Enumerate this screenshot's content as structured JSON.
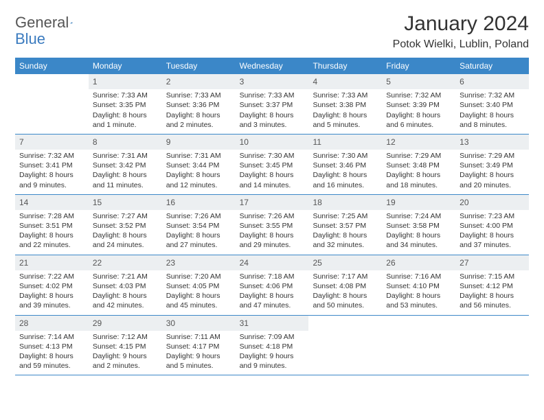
{
  "brand": {
    "part1": "General",
    "part2": "Blue"
  },
  "title": "January 2024",
  "location": "Potok Wielki, Lublin, Poland",
  "colors": {
    "header_bg": "#3b87c8",
    "header_text": "#ffffff",
    "daynum_bg": "#eceff1",
    "rule": "#3b87c8",
    "brand_gray": "#6b6b6b",
    "brand_blue": "#3b7bbf"
  },
  "days_of_week": [
    "Sunday",
    "Monday",
    "Tuesday",
    "Wednesday",
    "Thursday",
    "Friday",
    "Saturday"
  ],
  "weeks": [
    [
      null,
      {
        "n": "1",
        "sr": "7:33 AM",
        "ss": "3:35 PM",
        "dl": "8 hours and 1 minute."
      },
      {
        "n": "2",
        "sr": "7:33 AM",
        "ss": "3:36 PM",
        "dl": "8 hours and 2 minutes."
      },
      {
        "n": "3",
        "sr": "7:33 AM",
        "ss": "3:37 PM",
        "dl": "8 hours and 3 minutes."
      },
      {
        "n": "4",
        "sr": "7:33 AM",
        "ss": "3:38 PM",
        "dl": "8 hours and 5 minutes."
      },
      {
        "n": "5",
        "sr": "7:32 AM",
        "ss": "3:39 PM",
        "dl": "8 hours and 6 minutes."
      },
      {
        "n": "6",
        "sr": "7:32 AM",
        "ss": "3:40 PM",
        "dl": "8 hours and 8 minutes."
      }
    ],
    [
      {
        "n": "7",
        "sr": "7:32 AM",
        "ss": "3:41 PM",
        "dl": "8 hours and 9 minutes."
      },
      {
        "n": "8",
        "sr": "7:31 AM",
        "ss": "3:42 PM",
        "dl": "8 hours and 11 minutes."
      },
      {
        "n": "9",
        "sr": "7:31 AM",
        "ss": "3:44 PM",
        "dl": "8 hours and 12 minutes."
      },
      {
        "n": "10",
        "sr": "7:30 AM",
        "ss": "3:45 PM",
        "dl": "8 hours and 14 minutes."
      },
      {
        "n": "11",
        "sr": "7:30 AM",
        "ss": "3:46 PM",
        "dl": "8 hours and 16 minutes."
      },
      {
        "n": "12",
        "sr": "7:29 AM",
        "ss": "3:48 PM",
        "dl": "8 hours and 18 minutes."
      },
      {
        "n": "13",
        "sr": "7:29 AM",
        "ss": "3:49 PM",
        "dl": "8 hours and 20 minutes."
      }
    ],
    [
      {
        "n": "14",
        "sr": "7:28 AM",
        "ss": "3:51 PM",
        "dl": "8 hours and 22 minutes."
      },
      {
        "n": "15",
        "sr": "7:27 AM",
        "ss": "3:52 PM",
        "dl": "8 hours and 24 minutes."
      },
      {
        "n": "16",
        "sr": "7:26 AM",
        "ss": "3:54 PM",
        "dl": "8 hours and 27 minutes."
      },
      {
        "n": "17",
        "sr": "7:26 AM",
        "ss": "3:55 PM",
        "dl": "8 hours and 29 minutes."
      },
      {
        "n": "18",
        "sr": "7:25 AM",
        "ss": "3:57 PM",
        "dl": "8 hours and 32 minutes."
      },
      {
        "n": "19",
        "sr": "7:24 AM",
        "ss": "3:58 PM",
        "dl": "8 hours and 34 minutes."
      },
      {
        "n": "20",
        "sr": "7:23 AM",
        "ss": "4:00 PM",
        "dl": "8 hours and 37 minutes."
      }
    ],
    [
      {
        "n": "21",
        "sr": "7:22 AM",
        "ss": "4:02 PM",
        "dl": "8 hours and 39 minutes."
      },
      {
        "n": "22",
        "sr": "7:21 AM",
        "ss": "4:03 PM",
        "dl": "8 hours and 42 minutes."
      },
      {
        "n": "23",
        "sr": "7:20 AM",
        "ss": "4:05 PM",
        "dl": "8 hours and 45 minutes."
      },
      {
        "n": "24",
        "sr": "7:18 AM",
        "ss": "4:06 PM",
        "dl": "8 hours and 47 minutes."
      },
      {
        "n": "25",
        "sr": "7:17 AM",
        "ss": "4:08 PM",
        "dl": "8 hours and 50 minutes."
      },
      {
        "n": "26",
        "sr": "7:16 AM",
        "ss": "4:10 PM",
        "dl": "8 hours and 53 minutes."
      },
      {
        "n": "27",
        "sr": "7:15 AM",
        "ss": "4:12 PM",
        "dl": "8 hours and 56 minutes."
      }
    ],
    [
      {
        "n": "28",
        "sr": "7:14 AM",
        "ss": "4:13 PM",
        "dl": "8 hours and 59 minutes."
      },
      {
        "n": "29",
        "sr": "7:12 AM",
        "ss": "4:15 PM",
        "dl": "9 hours and 2 minutes."
      },
      {
        "n": "30",
        "sr": "7:11 AM",
        "ss": "4:17 PM",
        "dl": "9 hours and 5 minutes."
      },
      {
        "n": "31",
        "sr": "7:09 AM",
        "ss": "4:18 PM",
        "dl": "9 hours and 9 minutes."
      },
      null,
      null,
      null
    ]
  ],
  "labels": {
    "sunrise": "Sunrise:",
    "sunset": "Sunset:",
    "daylight": "Daylight:"
  }
}
